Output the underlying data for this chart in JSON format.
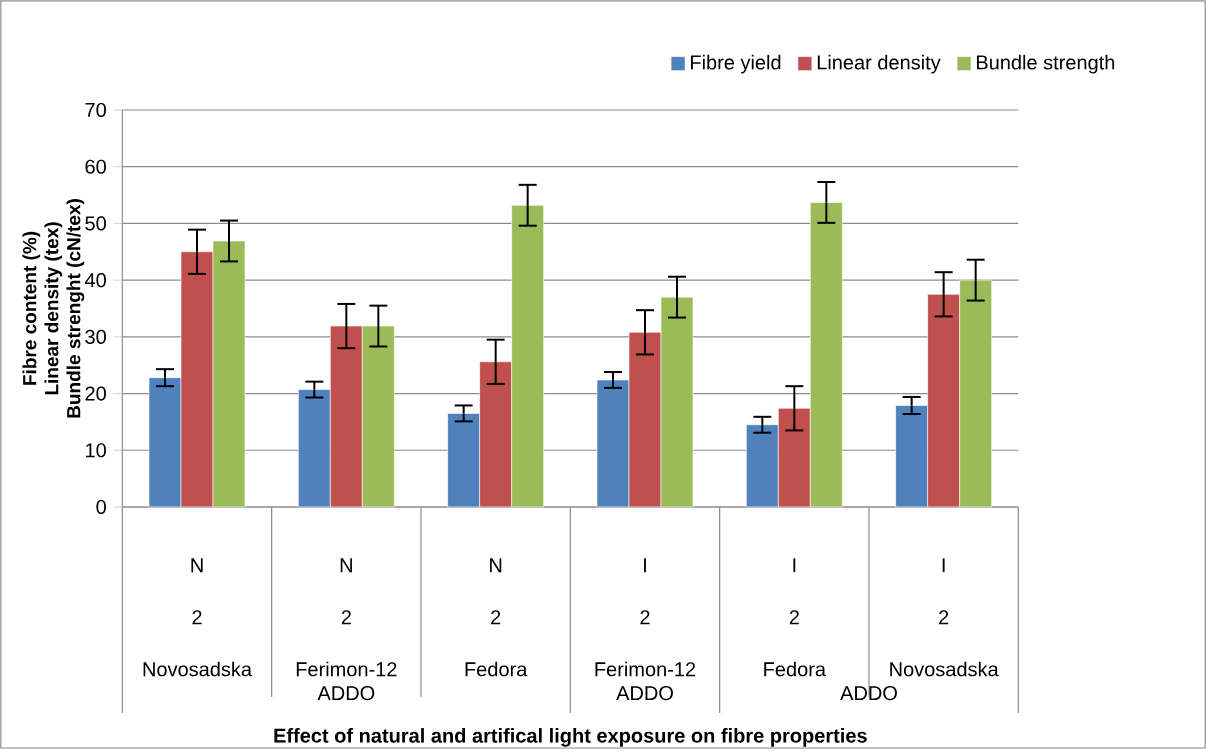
{
  "chart_data": {
    "type": "bar",
    "ylabel": "Fibre content (%) Linear density (tex) Bundle strenght (cN/tex)",
    "categories": [
      "N 2 Novosadska",
      "N 2 Ferimon-12",
      "N 2 Fedora",
      "I 2 Ferimon-12",
      "I 2 Fedora",
      "I 2 Novosadska"
    ],
    "annotations": [
      "ADDO",
      "ADDO",
      "ADDO",
      "Effect of natural and artifical light exposure on fibre properties"
    ],
    "series": [
      {
        "name": "Fibre yield",
        "color": "#4f81bd",
        "values": [
          22.8,
          20.7,
          16.5,
          22.4,
          14.5,
          17.9
        ],
        "errors": [
          1.5,
          1.4,
          1.4,
          1.4,
          1.4,
          1.5
        ]
      },
      {
        "name": "Linear density",
        "color": "#c0504d",
        "values": [
          45,
          31.9,
          25.6,
          30.8,
          17.4,
          37.5
        ],
        "errors": [
          3.9,
          3.9,
          3.9,
          3.9,
          3.9,
          3.9
        ]
      },
      {
        "name": "Bundle strength",
        "color": "#9bbb59",
        "values": [
          46.9,
          31.9,
          53.2,
          37,
          53.7,
          40
        ],
        "errors": [
          3.6,
          3.6,
          3.6,
          3.6,
          3.6,
          3.6
        ]
      }
    ],
    "ylim": [
      0,
      70
    ],
    "yticks": [
      0,
      10,
      20,
      30,
      40,
      50,
      60,
      70
    ],
    "grid": "y",
    "legend": "top right"
  }
}
